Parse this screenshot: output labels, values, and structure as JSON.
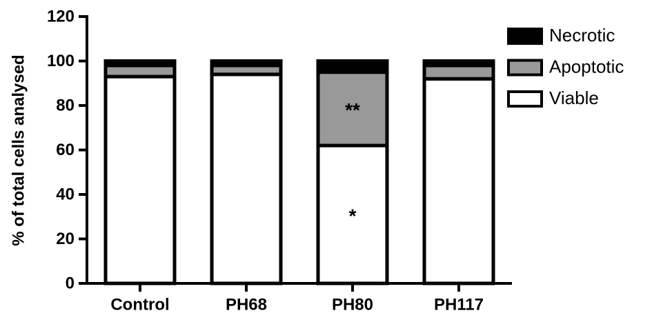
{
  "chart_data": {
    "type": "stacked_bar",
    "y_label": "% of total cells analysed",
    "categories": [
      "Control",
      "PH68",
      "PH80",
      "PH117"
    ],
    "series": [
      {
        "name": "Viable",
        "color": "#ffffff",
        "values": [
          93,
          94,
          62,
          92
        ]
      },
      {
        "name": "Apoptotic",
        "color": "#999999",
        "values": [
          5,
          4,
          33,
          6
        ]
      },
      {
        "name": "Necrotic",
        "color": "#000000",
        "values": [
          2,
          2,
          5,
          2
        ]
      }
    ],
    "annotations": [
      {
        "text": "**",
        "category": "PH80",
        "series": "Apoptotic"
      },
      {
        "text": "*",
        "category": "PH80",
        "series": "Viable"
      }
    ],
    "ylim": [
      0,
      120
    ],
    "yticks": [
      0,
      20,
      40,
      60,
      80,
      100,
      120
    ],
    "legend": "right"
  }
}
